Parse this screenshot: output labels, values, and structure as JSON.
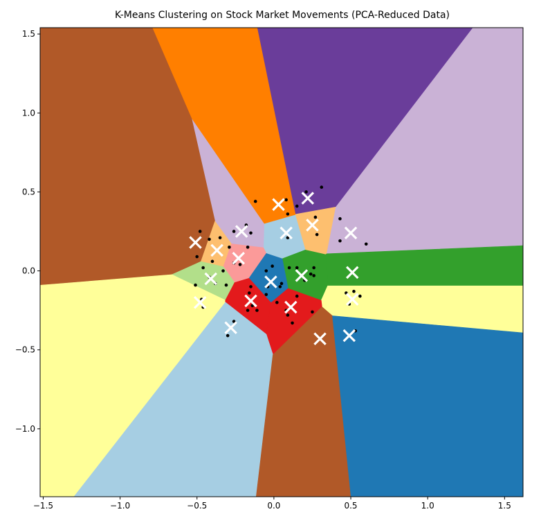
{
  "chart_data": {
    "type": "scatter",
    "title": "K-Means Clustering on Stock Market Movements (PCA-Reduced Data)",
    "xlabel": "",
    "ylabel": "",
    "xlim": [
      -1.52,
      1.62
    ],
    "ylim": [
      -1.43,
      1.54
    ],
    "x_ticks": [
      -1.5,
      -1.0,
      -0.5,
      0.0,
      0.5,
      1.0,
      1.5
    ],
    "x_tick_labels": [
      "−1.5",
      "−1.0",
      "−0.5",
      "0.0",
      "0.5",
      "1.0",
      "1.5"
    ],
    "y_ticks": [
      -1.0,
      -0.5,
      0.0,
      0.5,
      1.0,
      1.5
    ],
    "y_tick_labels": [
      "−1.0",
      "−0.5",
      "0.0",
      "0.5",
      "1.0",
      "1.5"
    ],
    "grid": false,
    "colors": {
      "brown": "#b15928",
      "orange": "#ff7f00",
      "purple": "#6a3d9a",
      "light_purple": "#cab2d6",
      "green": "#33a02c",
      "yellow": "#ffff99",
      "light_blue": "#a6cee3",
      "blue": "#1f78b4",
      "red": "#e31a1c",
      "pink": "#fb9a99",
      "light_orange": "#fdbf6f",
      "light_green": "#b2df8a",
      "points": "#000000",
      "centroids": "#ffffff"
    },
    "centroids": [
      {
        "x": 0.03,
        "y": 0.42,
        "color": "orange"
      },
      {
        "x": 0.22,
        "y": 0.46,
        "color": "purple"
      },
      {
        "x": 0.25,
        "y": 0.29,
        "color": "light_orange"
      },
      {
        "x": 0.5,
        "y": 0.24,
        "color": "light_purple"
      },
      {
        "x": 0.08,
        "y": 0.24,
        "color": "light_blue"
      },
      {
        "x": -0.21,
        "y": 0.25,
        "color": "light_purple"
      },
      {
        "x": -0.51,
        "y": 0.18,
        "color": "brown"
      },
      {
        "x": -0.37,
        "y": 0.13,
        "color": "light_orange"
      },
      {
        "x": -0.23,
        "y": 0.08,
        "color": "pink"
      },
      {
        "x": 0.51,
        "y": -0.01,
        "color": "green"
      },
      {
        "x": 0.18,
        "y": -0.03,
        "color": "green"
      },
      {
        "x": -0.02,
        "y": -0.07,
        "color": "blue"
      },
      {
        "x": -0.41,
        "y": -0.05,
        "color": "light_green"
      },
      {
        "x": -0.48,
        "y": -0.2,
        "color": "yellow"
      },
      {
        "x": 0.51,
        "y": -0.18,
        "color": "yellow"
      },
      {
        "x": -0.15,
        "y": -0.19,
        "color": "red"
      },
      {
        "x": 0.11,
        "y": -0.23,
        "color": "red"
      },
      {
        "x": -0.28,
        "y": -0.36,
        "color": "light_blue"
      },
      {
        "x": 0.3,
        "y": -0.43,
        "color": "brown"
      },
      {
        "x": 0.49,
        "y": -0.41,
        "color": "blue"
      }
    ],
    "points": [
      {
        "x": -0.12,
        "y": 0.44
      },
      {
        "x": 0.08,
        "y": 0.45
      },
      {
        "x": 0.21,
        "y": 0.5
      },
      {
        "x": 0.31,
        "y": 0.53
      },
      {
        "x": 0.15,
        "y": 0.41
      },
      {
        "x": 0.09,
        "y": 0.36
      },
      {
        "x": 0.27,
        "y": 0.34
      },
      {
        "x": 0.28,
        "y": 0.23
      },
      {
        "x": 0.09,
        "y": 0.21
      },
      {
        "x": -0.18,
        "y": 0.29
      },
      {
        "x": -0.26,
        "y": 0.25
      },
      {
        "x": -0.15,
        "y": 0.24
      },
      {
        "x": 0.43,
        "y": 0.33
      },
      {
        "x": 0.43,
        "y": 0.19
      },
      {
        "x": 0.6,
        "y": 0.17
      },
      {
        "x": -0.48,
        "y": 0.25
      },
      {
        "x": -0.42,
        "y": 0.2
      },
      {
        "x": -0.35,
        "y": 0.21
      },
      {
        "x": -0.17,
        "y": 0.15
      },
      {
        "x": -0.29,
        "y": 0.15
      },
      {
        "x": -0.5,
        "y": 0.09
      },
      {
        "x": -0.4,
        "y": 0.06
      },
      {
        "x": -0.26,
        "y": 0.05
      },
      {
        "x": -0.22,
        "y": 0.04
      },
      {
        "x": -0.46,
        "y": 0.02
      },
      {
        "x": -0.33,
        "y": 0.0
      },
      {
        "x": -0.42,
        "y": -0.04
      },
      {
        "x": -0.38,
        "y": -0.08
      },
      {
        "x": -0.31,
        "y": -0.09
      },
      {
        "x": -0.51,
        "y": -0.09
      },
      {
        "x": -0.47,
        "y": -0.18
      },
      {
        "x": -0.46,
        "y": -0.23
      },
      {
        "x": -0.01,
        "y": 0.03
      },
      {
        "x": -0.05,
        "y": 0.0
      },
      {
        "x": -0.04,
        "y": -0.1
      },
      {
        "x": 0.04,
        "y": -0.1
      },
      {
        "x": 0.05,
        "y": -0.08
      },
      {
        "x": 0.1,
        "y": 0.02
      },
      {
        "x": 0.15,
        "y": 0.02
      },
      {
        "x": 0.26,
        "y": 0.02
      },
      {
        "x": 0.24,
        "y": -0.02
      },
      {
        "x": 0.26,
        "y": -0.03
      },
      {
        "x": 0.2,
        "y": -0.06
      },
      {
        "x": 0.47,
        "y": -0.14
      },
      {
        "x": 0.49,
        "y": -0.21
      },
      {
        "x": 0.56,
        "y": -0.16
      },
      {
        "x": 0.52,
        "y": -0.13
      },
      {
        "x": -0.15,
        "y": -0.1
      },
      {
        "x": -0.16,
        "y": -0.14
      },
      {
        "x": -0.05,
        "y": -0.15
      },
      {
        "x": -0.14,
        "y": -0.22
      },
      {
        "x": -0.11,
        "y": -0.25
      },
      {
        "x": -0.17,
        "y": -0.25
      },
      {
        "x": 0.02,
        "y": -0.2
      },
      {
        "x": 0.15,
        "y": -0.16
      },
      {
        "x": 0.08,
        "y": -0.25
      },
      {
        "x": 0.09,
        "y": -0.28
      },
      {
        "x": 0.12,
        "y": -0.33
      },
      {
        "x": 0.25,
        "y": -0.26
      },
      {
        "x": -0.26,
        "y": -0.32
      },
      {
        "x": -0.3,
        "y": -0.41
      },
      {
        "x": 0.53,
        "y": -0.38
      }
    ]
  }
}
